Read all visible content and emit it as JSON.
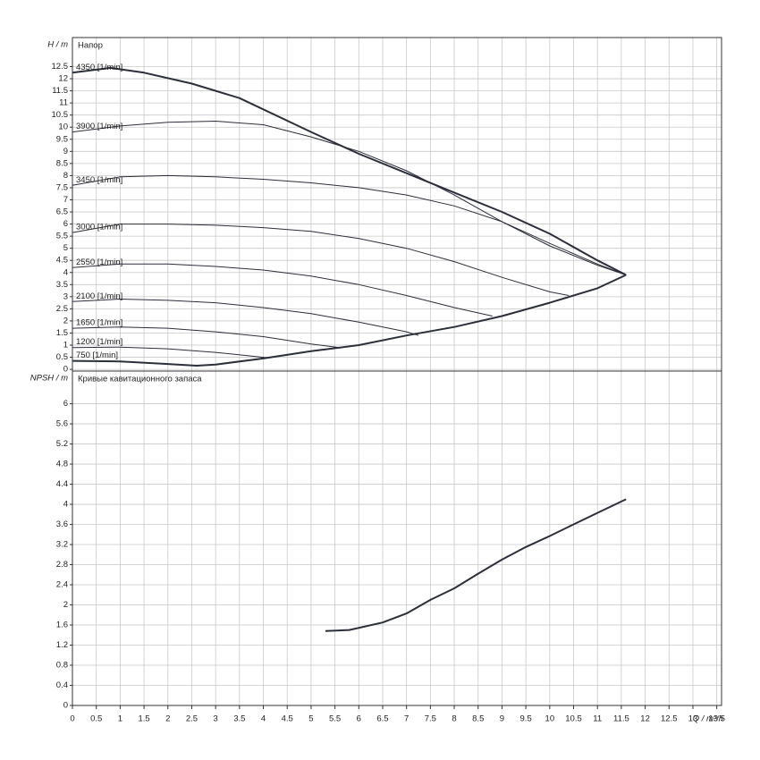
{
  "chart_data": [
    {
      "type": "line",
      "y_label": "H / m",
      "subtitle": "Напор",
      "ylim": [
        -0.07,
        13.7
      ],
      "yticks": [
        0,
        0.5,
        1,
        1.5,
        2,
        2.5,
        3,
        3.5,
        4,
        4.5,
        5,
        5.5,
        6,
        6.5,
        7,
        7.5,
        8,
        8.5,
        9,
        9.5,
        10,
        10.5,
        11,
        11.5,
        12,
        12.5
      ],
      "grid": true,
      "color": "#2b2f3a",
      "series": [
        {
          "name": "4350 [1/min]",
          "line_width": 2,
          "x": [
            0,
            0.8,
            1.5,
            2.5,
            3.5,
            5,
            6,
            7,
            8,
            9,
            10,
            11,
            11.6
          ],
          "values": [
            12.25,
            12.45,
            12.25,
            11.8,
            11.2,
            9.8,
            8.9,
            8.1,
            7.3,
            6.5,
            5.6,
            4.5,
            3.9
          ]
        },
        {
          "name": "3900 [1/min]",
          "line_width": 1,
          "x": [
            0,
            1,
            2,
            3,
            4,
            5,
            6,
            7,
            8,
            9,
            10,
            11,
            11.6
          ],
          "values": [
            9.8,
            10.05,
            10.2,
            10.25,
            10.1,
            9.6,
            9.0,
            8.2,
            7.2,
            6.1,
            5.1,
            4.3,
            3.9
          ]
        },
        {
          "name": "3450 [1/min]",
          "line_width": 1,
          "x": [
            0,
            1,
            2,
            3,
            4,
            5,
            6,
            7,
            8,
            9,
            10,
            11,
            11.6
          ],
          "values": [
            7.6,
            7.95,
            8.0,
            7.95,
            7.85,
            7.7,
            7.5,
            7.2,
            6.75,
            6.1,
            5.2,
            4.35,
            3.9
          ]
        },
        {
          "name": "3000 [1/min]",
          "line_width": 1,
          "x": [
            0,
            1,
            2,
            3,
            4,
            5,
            6,
            7,
            8,
            9,
            10,
            10.4
          ],
          "values": [
            5.65,
            6.0,
            6.0,
            5.95,
            5.85,
            5.7,
            5.4,
            5.0,
            4.45,
            3.8,
            3.2,
            3.05
          ]
        },
        {
          "name": "2550 [1/min]",
          "line_width": 1,
          "x": [
            0,
            1,
            2,
            3,
            4,
            5,
            6,
            7,
            8,
            8.8
          ],
          "values": [
            4.2,
            4.35,
            4.35,
            4.25,
            4.1,
            3.85,
            3.5,
            3.05,
            2.55,
            2.2
          ]
        },
        {
          "name": "2100 [1/min]",
          "line_width": 1,
          "x": [
            0,
            1,
            2,
            3,
            4,
            5,
            6,
            7,
            7.25
          ],
          "values": [
            2.8,
            2.9,
            2.85,
            2.75,
            2.55,
            2.3,
            1.95,
            1.55,
            1.4
          ]
        },
        {
          "name": "1650 [1/min]",
          "line_width": 1,
          "x": [
            0,
            1,
            2,
            3,
            4,
            5,
            5.6
          ],
          "values": [
            1.7,
            1.75,
            1.7,
            1.55,
            1.35,
            1.05,
            0.9
          ]
        },
        {
          "name": "1200 [1/min]",
          "line_width": 1,
          "x": [
            0,
            1,
            2,
            3,
            4,
            4.1
          ],
          "values": [
            0.9,
            0.92,
            0.85,
            0.7,
            0.5,
            0.48
          ]
        },
        {
          "name": "750 [1/min]",
          "line_width": 2,
          "x": [
            0,
            1,
            2,
            2.6,
            3,
            4,
            5,
            6,
            7,
            8,
            9,
            10,
            11,
            11.6
          ],
          "values": [
            0.35,
            0.33,
            0.22,
            0.15,
            0.2,
            0.45,
            0.75,
            1.0,
            1.4,
            1.75,
            2.2,
            2.75,
            3.35,
            3.9
          ]
        }
      ]
    },
    {
      "type": "line",
      "y_label": "NPSH / m",
      "subtitle": "Кривые кавитационного запаса",
      "x_label": "Q / m³/h",
      "xlim": [
        0,
        13.6
      ],
      "xticks": [
        0,
        0.5,
        1,
        1.5,
        2,
        2.5,
        3,
        3.5,
        4,
        4.5,
        5,
        5.5,
        6,
        6.5,
        7,
        7.5,
        8,
        8.5,
        9,
        9.5,
        10,
        10.5,
        11,
        11.5,
        12,
        12.5,
        13,
        13.5
      ],
      "ylim": [
        0,
        6.65
      ],
      "yticks": [
        0,
        0.4,
        0.8,
        1.2,
        1.6,
        2,
        2.4,
        2.8,
        3.2,
        3.6,
        4,
        4.4,
        4.8,
        5.2,
        5.6,
        6
      ],
      "grid": true,
      "color": "#2b2f3a",
      "series": [
        {
          "line_width": 2,
          "x": [
            5.3,
            5.8,
            6.5,
            7,
            7.5,
            8,
            8.5,
            9,
            9.5,
            10,
            10.5,
            11,
            11.6
          ],
          "values": [
            1.48,
            1.5,
            1.65,
            1.83,
            2.1,
            2.33,
            2.62,
            2.9,
            3.15,
            3.37,
            3.6,
            3.83,
            4.1
          ]
        }
      ]
    }
  ]
}
